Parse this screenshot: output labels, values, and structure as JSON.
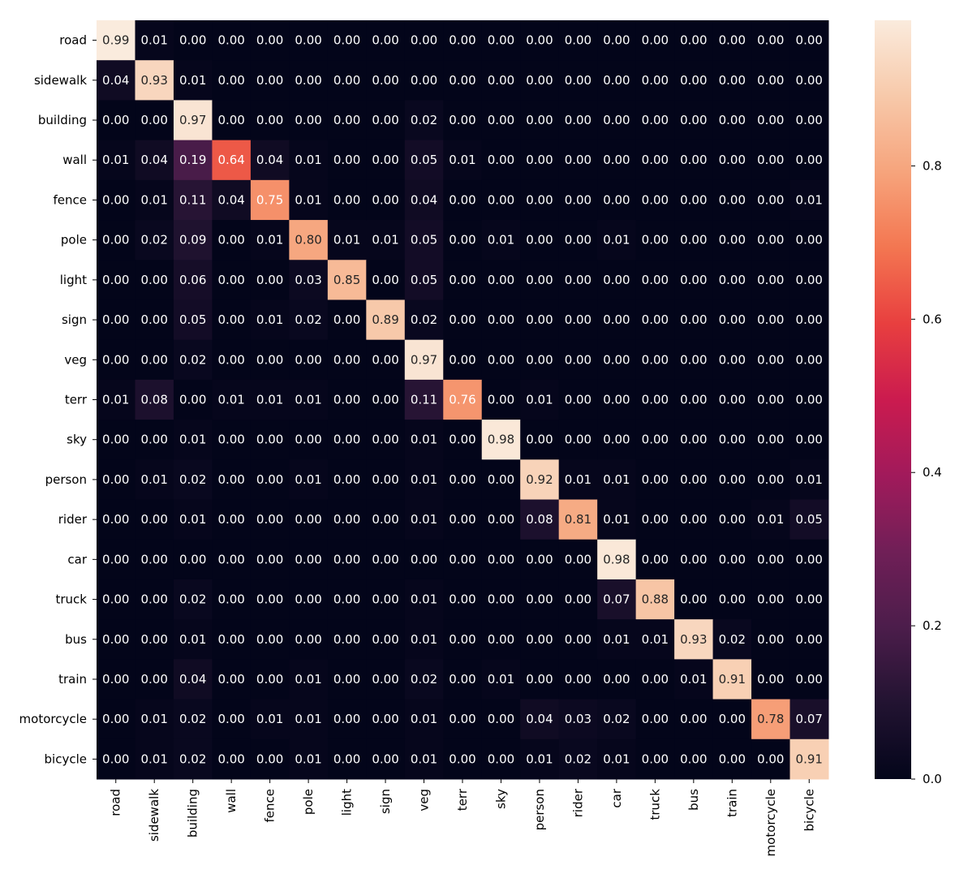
{
  "chart_data": {
    "type": "heatmap",
    "title": "",
    "xlabel": "",
    "ylabel": "",
    "x_categories": [
      "road",
      "sidewalk",
      "building",
      "wall",
      "fence",
      "pole",
      "light",
      "sign",
      "veg",
      "terr",
      "sky",
      "person",
      "rider",
      "car",
      "truck",
      "bus",
      "train",
      "motorcycle",
      "bicycle"
    ],
    "y_categories": [
      "road",
      "sidewalk",
      "building",
      "wall",
      "fence",
      "pole",
      "light",
      "sign",
      "veg",
      "terr",
      "sky",
      "person",
      "rider",
      "car",
      "truck",
      "bus",
      "train",
      "motorcycle",
      "bicycle"
    ],
    "values": [
      [
        0.99,
        0.01,
        0.0,
        0.0,
        0.0,
        0.0,
        0.0,
        0.0,
        0.0,
        0.0,
        0.0,
        0.0,
        0.0,
        0.0,
        0.0,
        0.0,
        0.0,
        0.0,
        0.0
      ],
      [
        0.04,
        0.93,
        0.01,
        0.0,
        0.0,
        0.0,
        0.0,
        0.0,
        0.0,
        0.0,
        0.0,
        0.0,
        0.0,
        0.0,
        0.0,
        0.0,
        0.0,
        0.0,
        0.0
      ],
      [
        0.0,
        0.0,
        0.97,
        0.0,
        0.0,
        0.0,
        0.0,
        0.0,
        0.02,
        0.0,
        0.0,
        0.0,
        0.0,
        0.0,
        0.0,
        0.0,
        0.0,
        0.0,
        0.0
      ],
      [
        0.01,
        0.04,
        0.19,
        0.64,
        0.04,
        0.01,
        0.0,
        0.0,
        0.05,
        0.01,
        0.0,
        0.0,
        0.0,
        0.0,
        0.0,
        0.0,
        0.0,
        0.0,
        0.0
      ],
      [
        0.0,
        0.01,
        0.11,
        0.04,
        0.75,
        0.01,
        0.0,
        0.0,
        0.04,
        0.0,
        0.0,
        0.0,
        0.0,
        0.0,
        0.0,
        0.0,
        0.0,
        0.0,
        0.01
      ],
      [
        0.0,
        0.02,
        0.09,
        0.0,
        0.01,
        0.8,
        0.01,
        0.01,
        0.05,
        0.0,
        0.01,
        0.0,
        0.0,
        0.01,
        0.0,
        0.0,
        0.0,
        0.0,
        0.0
      ],
      [
        0.0,
        0.0,
        0.06,
        0.0,
        0.0,
        0.03,
        0.85,
        0.0,
        0.05,
        0.0,
        0.0,
        0.0,
        0.0,
        0.0,
        0.0,
        0.0,
        0.0,
        0.0,
        0.0
      ],
      [
        0.0,
        0.0,
        0.05,
        0.0,
        0.01,
        0.02,
        0.0,
        0.89,
        0.02,
        0.0,
        0.0,
        0.0,
        0.0,
        0.0,
        0.0,
        0.0,
        0.0,
        0.0,
        0.0
      ],
      [
        0.0,
        0.0,
        0.02,
        0.0,
        0.0,
        0.0,
        0.0,
        0.0,
        0.97,
        0.0,
        0.0,
        0.0,
        0.0,
        0.0,
        0.0,
        0.0,
        0.0,
        0.0,
        0.0
      ],
      [
        0.01,
        0.08,
        0.0,
        0.01,
        0.01,
        0.01,
        0.0,
        0.0,
        0.11,
        0.76,
        0.0,
        0.01,
        0.0,
        0.0,
        0.0,
        0.0,
        0.0,
        0.0,
        0.0
      ],
      [
        0.0,
        0.0,
        0.01,
        0.0,
        0.0,
        0.0,
        0.0,
        0.0,
        0.01,
        0.0,
        0.98,
        0.0,
        0.0,
        0.0,
        0.0,
        0.0,
        0.0,
        0.0,
        0.0
      ],
      [
        0.0,
        0.01,
        0.02,
        0.0,
        0.0,
        0.01,
        0.0,
        0.0,
        0.01,
        0.0,
        0.0,
        0.92,
        0.01,
        0.01,
        0.0,
        0.0,
        0.0,
        0.0,
        0.01
      ],
      [
        0.0,
        0.0,
        0.01,
        0.0,
        0.0,
        0.0,
        0.0,
        0.0,
        0.01,
        0.0,
        0.0,
        0.08,
        0.81,
        0.01,
        0.0,
        0.0,
        0.0,
        0.01,
        0.05
      ],
      [
        0.0,
        0.0,
        0.0,
        0.0,
        0.0,
        0.0,
        0.0,
        0.0,
        0.0,
        0.0,
        0.0,
        0.0,
        0.0,
        0.98,
        0.0,
        0.0,
        0.0,
        0.0,
        0.0
      ],
      [
        0.0,
        0.0,
        0.02,
        0.0,
        0.0,
        0.0,
        0.0,
        0.0,
        0.01,
        0.0,
        0.0,
        0.0,
        0.0,
        0.07,
        0.88,
        0.0,
        0.0,
        0.0,
        0.0
      ],
      [
        0.0,
        0.0,
        0.01,
        0.0,
        0.0,
        0.0,
        0.0,
        0.0,
        0.01,
        0.0,
        0.0,
        0.0,
        0.0,
        0.01,
        0.01,
        0.93,
        0.02,
        0.0,
        0.0
      ],
      [
        0.0,
        0.0,
        0.04,
        0.0,
        0.0,
        0.01,
        0.0,
        0.0,
        0.02,
        0.0,
        0.01,
        0.0,
        0.0,
        0.0,
        0.0,
        0.01,
        0.91,
        0.0,
        0.0
      ],
      [
        0.0,
        0.01,
        0.02,
        0.0,
        0.01,
        0.01,
        0.0,
        0.0,
        0.01,
        0.0,
        0.0,
        0.04,
        0.03,
        0.02,
        0.0,
        0.0,
        0.0,
        0.78,
        0.07
      ],
      [
        0.0,
        0.01,
        0.02,
        0.0,
        0.0,
        0.01,
        0.0,
        0.0,
        0.01,
        0.0,
        0.0,
        0.01,
        0.02,
        0.01,
        0.0,
        0.0,
        0.0,
        0.0,
        0.91
      ]
    ],
    "value_format": "0.00",
    "colormap": "rocket",
    "color_range": [
      0.0,
      0.99
    ],
    "colorbar": {
      "position": "right",
      "ticks": [
        0.0,
        0.2,
        0.4,
        0.6,
        0.8
      ],
      "tick_labels": [
        "0.0",
        "0.2",
        "0.4",
        "0.6",
        "0.8"
      ]
    },
    "grid": false
  }
}
